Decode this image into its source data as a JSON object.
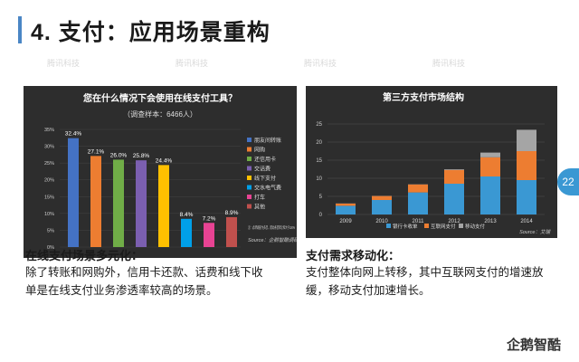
{
  "page": {
    "title": "4. 支付：应用场景重构",
    "page_number": "22",
    "logo_text": "企鹅智酷",
    "watermark": "腾讯科技"
  },
  "left_caption": {
    "title": "在线支付场景多元化：",
    "body": "除了转账和网购外，信用卡还款、话费和线下收单是在线支付业务渗透率较高的场景。"
  },
  "right_caption": {
    "title": "支付需求移动化：",
    "body": "支付整体向网上转移，其中互联网支付的增速放缓，移动支付加速增长。"
  },
  "chart_data": [
    {
      "type": "bar",
      "title": "您在什么情况下会使用在线支付工具？",
      "subtitle": "（调查样本：6466人）",
      "categories": [
        "朋友间转账",
        "网购",
        "还信用卡",
        "交话费",
        "线下支付",
        "交水电气费",
        "打车",
        "其他"
      ],
      "values": [
        32.4,
        27.1,
        26.0,
        25.8,
        24.4,
        8.4,
        7.2,
        8.9
      ],
      "value_labels": [
        "32.4%",
        "27.1%",
        "26.0%",
        "25.8%",
        "24.4%",
        "8.4%",
        "7.2%",
        "8.9%"
      ],
      "colors": [
        "#4472c4",
        "#ed7d31",
        "#70ad47",
        "#7b5fb0",
        "#ffc000",
        "#00a0e9",
        "#e84393",
        "#c0504d"
      ],
      "yticks": [
        "0%",
        "5%",
        "10%",
        "15%",
        "20%",
        "25%",
        "30%",
        "35%"
      ],
      "ylim": [
        0,
        35
      ],
      "note": "注：此项调查为多选，因此各选项之和大于100%",
      "source": "Source：企鹅智酷调研",
      "legend_position": "right"
    },
    {
      "type": "bar",
      "stacked": true,
      "title": "第三方支付市场结构",
      "categories": [
        "2009",
        "2010",
        "2011",
        "2012",
        "2013",
        "2014"
      ],
      "series": [
        {
          "name": "银行卡收单",
          "color": "#3a98d3",
          "values": [
            2.4,
            4.0,
            6.1,
            8.5,
            10.5,
            9.5
          ]
        },
        {
          "name": "互联网支付",
          "color": "#ed7d31",
          "values": [
            0.6,
            1.1,
            2.2,
            3.8,
            5.3,
            8.0
          ]
        },
        {
          "name": "移动支付",
          "color": "#a5a5a5",
          "values": [
            0.05,
            0.05,
            0.05,
            0.2,
            1.3,
            5.9
          ]
        }
      ],
      "yticks": [
        "0",
        "5",
        "10",
        "15",
        "20",
        "25"
      ],
      "ylim": [
        0,
        25
      ],
      "source": "Source：艾瑞",
      "legend_position": "bottom"
    }
  ]
}
